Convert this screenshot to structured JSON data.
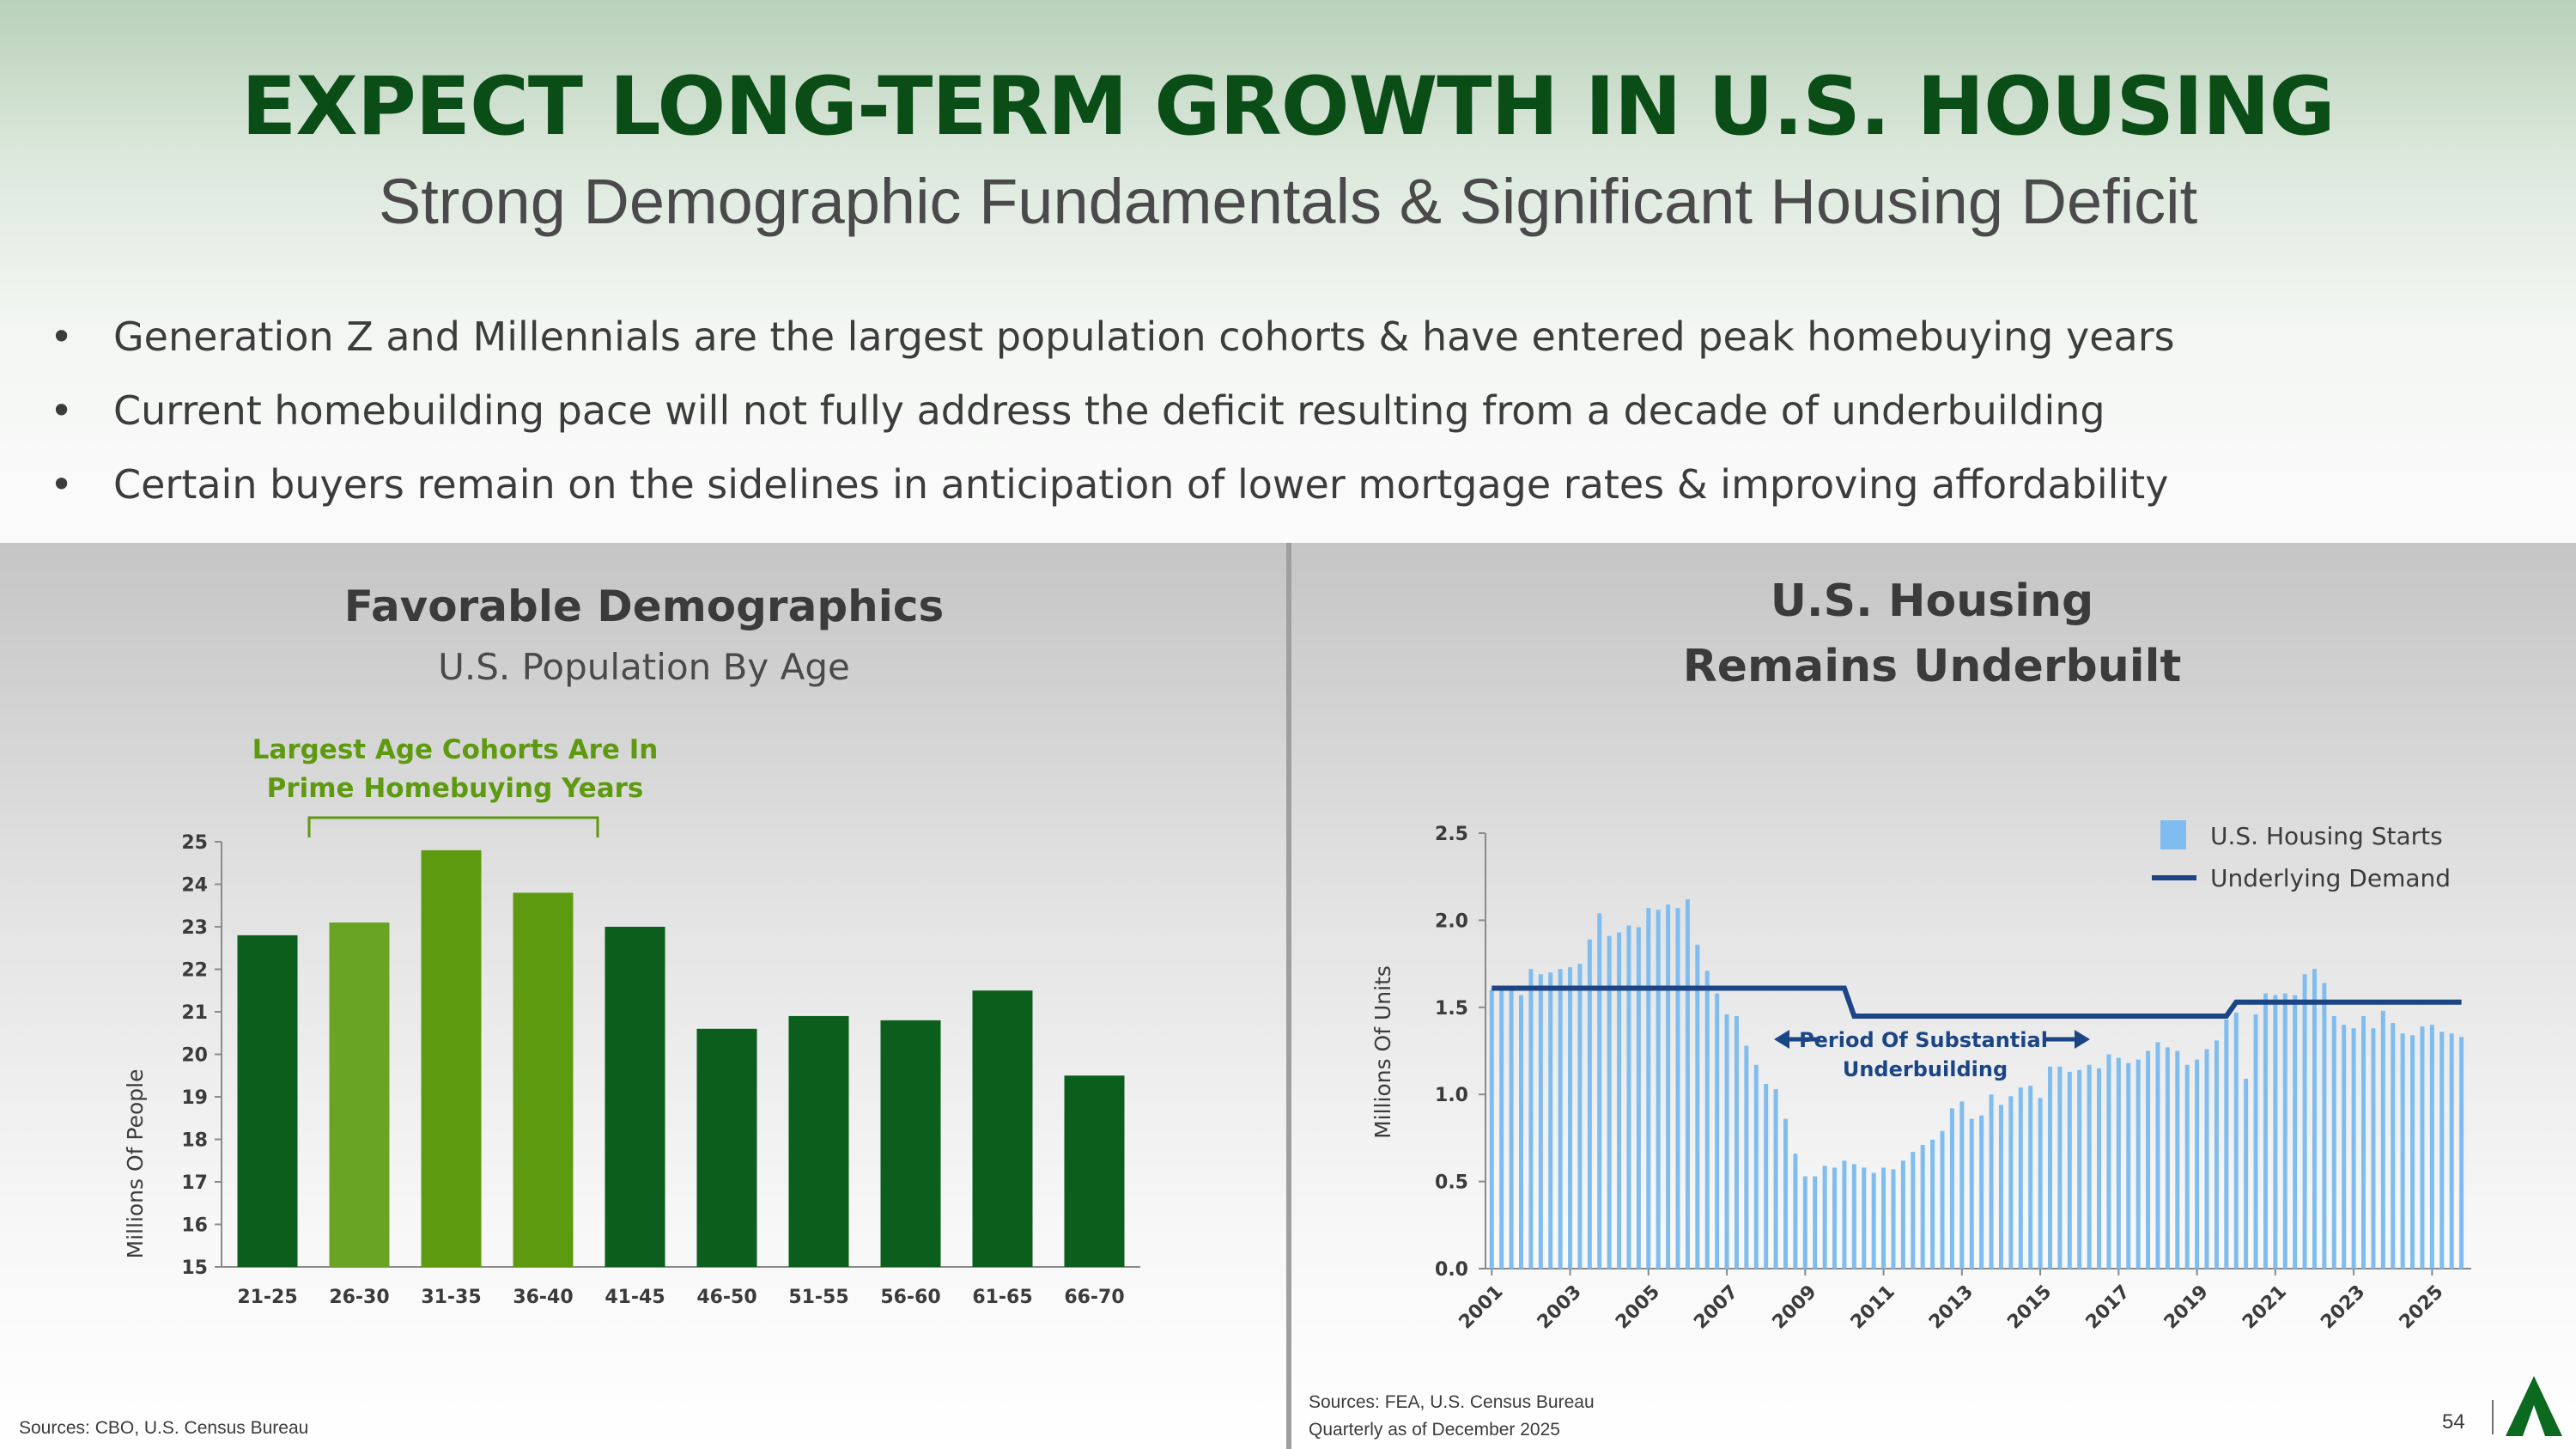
{
  "header": {
    "title": "EXPECT LONG-TERM GROWTH IN U.S. HOUSING",
    "subtitle": "Strong Demographic Fundamentals & Significant Housing Deficit",
    "bullet_glyph": "•",
    "bullets": [
      "Generation Z and Millennials are the largest population cohorts & have entered peak homebuying years",
      "Current homebuilding pace will not fully address the deficit resulting from a decade of underbuilding",
      "Certain buyers remain on the sidelines in anticipation of lower mortgage rates & improving affordability"
    ]
  },
  "left_panel": {
    "title": "Favorable Demographics",
    "subtitle": "U.S. Population By Age",
    "annotation_line1": "Largest Age Cohorts Are In",
    "annotation_line2": "Prime Homebuying Years",
    "source": "Sources: CBO, U.S. Census Bureau"
  },
  "right_panel": {
    "title_line1": "U.S. Housing",
    "title_line2": "Remains Underbuilt",
    "annotation_line1": "Period Of Substantial",
    "annotation_line2": "Underbuilding",
    "source_line1": "Sources: FEA, U.S. Census Bureau",
    "source_line2": "Quarterly as of December 2025"
  },
  "footer": {
    "page_number": "54"
  },
  "colors": {
    "title_green": "#0a4d16",
    "bar_dark": "#0b5e1c",
    "bar_light": "#6aa424",
    "bar_light2": "#5e9a10",
    "starts_blue": "#7fbdf0",
    "demand_navy": "#1c4585",
    "annotation_green": "#5e9a10"
  },
  "chart_data": [
    {
      "type": "bar",
      "title": "Favorable Demographics",
      "subtitle": "U.S. Population By Age",
      "ylabel": "Millions Of People",
      "xlabel": "",
      "ylim": [
        15,
        25
      ],
      "yticks": [
        15,
        16,
        17,
        18,
        19,
        20,
        21,
        22,
        23,
        24,
        25
      ],
      "categories": [
        "21-25",
        "26-30",
        "31-35",
        "36-40",
        "41-45",
        "46-50",
        "51-55",
        "56-60",
        "61-65",
        "66-70"
      ],
      "values": [
        22.8,
        23.1,
        24.8,
        23.8,
        23.0,
        20.6,
        20.9,
        20.8,
        21.5,
        19.5
      ],
      "highlighted": [
        "26-30",
        "31-35",
        "36-40"
      ],
      "annotation": "Largest Age Cohorts Are In Prime Homebuying Years"
    },
    {
      "type": "bar",
      "title": "U.S. Housing Remains Underbuilt",
      "ylabel": "Millions Of Units",
      "xlabel": "",
      "ylim": [
        0,
        2.5
      ],
      "yticks": [
        "0.0",
        "0.5",
        "1.0",
        "1.5",
        "2.0",
        "2.5"
      ],
      "xticks": [
        "2001",
        "2003",
        "2005",
        "2007",
        "2009",
        "2011",
        "2013",
        "2015",
        "2017",
        "2019",
        "2021",
        "2023",
        "2025"
      ],
      "legend": [
        "U.S. Housing Starts",
        "Underlying Demand"
      ],
      "legend_position": "top-right",
      "start_year": 2001,
      "frequency": "quarterly",
      "series": [
        {
          "name": "U.S. Housing Starts",
          "kind": "bar",
          "values": [
            1.6,
            1.62,
            1.6,
            1.57,
            1.72,
            1.69,
            1.7,
            1.72,
            1.73,
            1.75,
            1.89,
            2.04,
            1.91,
            1.93,
            1.97,
            1.96,
            2.07,
            2.06,
            2.09,
            2.07,
            2.12,
            1.86,
            1.71,
            1.58,
            1.46,
            1.45,
            1.28,
            1.17,
            1.06,
            1.03,
            0.86,
            0.66,
            0.53,
            0.53,
            0.59,
            0.58,
            0.62,
            0.6,
            0.58,
            0.55,
            0.58,
            0.57,
            0.62,
            0.67,
            0.71,
            0.74,
            0.79,
            0.92,
            0.96,
            0.86,
            0.88,
            1.0,
            0.94,
            0.99,
            1.04,
            1.05,
            0.98,
            1.16,
            1.16,
            1.13,
            1.14,
            1.17,
            1.15,
            1.23,
            1.21,
            1.18,
            1.2,
            1.25,
            1.3,
            1.27,
            1.25,
            1.17,
            1.2,
            1.26,
            1.31,
            1.43,
            1.47,
            1.09,
            1.46,
            1.58,
            1.57,
            1.58,
            1.57,
            1.69,
            1.72,
            1.64,
            1.45,
            1.4,
            1.38,
            1.45,
            1.38,
            1.48,
            1.41,
            1.35,
            1.34,
            1.39,
            1.4,
            1.36,
            1.35,
            1.33
          ]
        },
        {
          "name": "Underlying Demand",
          "kind": "line",
          "values": [
            {
              "from": 2001.0,
              "to": 2010.0,
              "value": 1.61
            },
            {
              "from": 2010.25,
              "to": 2019.75,
              "value": 1.45
            },
            {
              "from": 2020.0,
              "to": 2025.75,
              "value": 1.53
            }
          ]
        }
      ],
      "annotation": "Period Of Substantial Underbuilding"
    }
  ]
}
